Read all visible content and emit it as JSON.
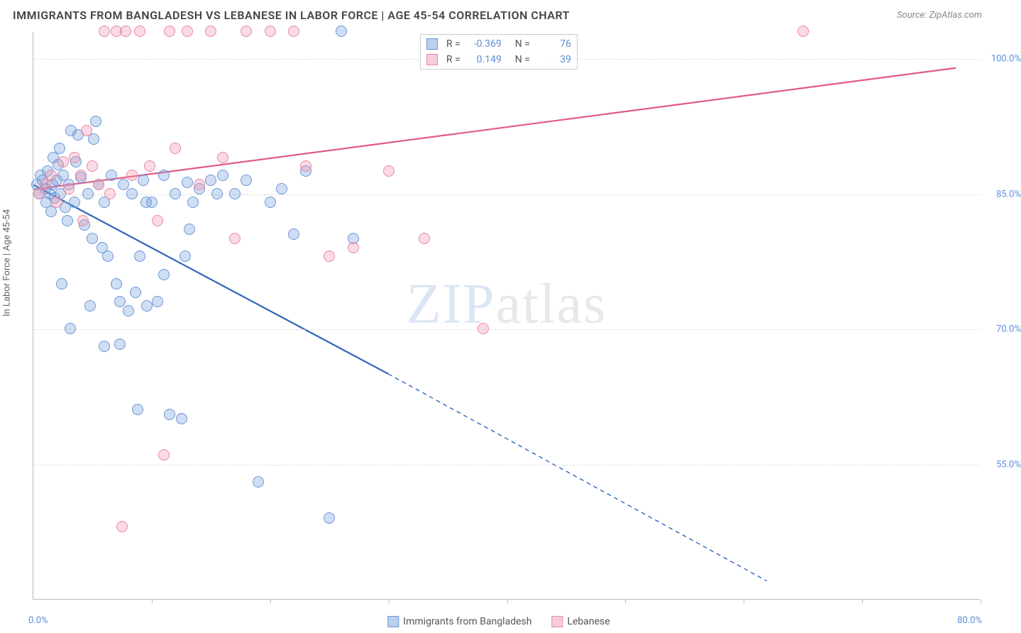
{
  "title": "IMMIGRANTS FROM BANGLADESH VS LEBANESE IN LABOR FORCE | AGE 45-54 CORRELATION CHART",
  "source_label": "Source: ZipAtlas.com",
  "ylabel": "In Labor Force | Age 45-54",
  "watermark_a": "ZIP",
  "watermark_b": "atlas",
  "chart": {
    "type": "scatter",
    "xlim": [
      0,
      80
    ],
    "ylim": [
      40,
      103
    ],
    "y_ticks": [
      55,
      70,
      85,
      100
    ],
    "y_tick_labels": [
      "55.0%",
      "70.0%",
      "85.0%",
      "100.0%"
    ],
    "x_ticks": [
      10,
      20,
      30,
      40,
      50,
      60,
      70,
      80
    ],
    "x_origin_label": "0.0%",
    "x_max_label": "80.0%",
    "background_color": "#ffffff",
    "grid_color": "#dddddd",
    "marker_radius": 8,
    "marker_stroke_width": 1.2,
    "line_width": 2.2,
    "series": [
      {
        "key": "bangladesh",
        "label": "Immigrants from Bangladesh",
        "fill": "rgba(120,160,220,0.35)",
        "stroke": "#6a98d6",
        "swatch_fill": "#b9d0ee",
        "swatch_border": "#6a98d6",
        "R": "-0.369",
        "N": "76",
        "trend": {
          "x1": 0,
          "y1": 86,
          "x2": 30,
          "y2": 65,
          "x2_ext": 62,
          "y2_ext": 42,
          "color": "#2f66b8"
        },
        "points": [
          [
            0.3,
            86
          ],
          [
            0.5,
            85
          ],
          [
            0.6,
            87
          ],
          [
            0.8,
            86.5
          ],
          [
            1,
            85.5
          ],
          [
            1.1,
            84
          ],
          [
            1.2,
            87.5
          ],
          [
            1.4,
            85
          ],
          [
            1.5,
            83
          ],
          [
            1.6,
            86
          ],
          [
            1.8,
            84.5
          ],
          [
            2,
            86.5
          ],
          [
            2.1,
            88.2
          ],
          [
            2.3,
            85
          ],
          [
            2.5,
            87
          ],
          [
            2.7,
            83.5
          ],
          [
            3,
            86
          ],
          [
            3.2,
            92
          ],
          [
            3.5,
            84
          ],
          [
            3.8,
            91.5
          ],
          [
            4,
            86.8
          ],
          [
            4.3,
            81.5
          ],
          [
            4.6,
            85
          ],
          [
            5,
            80
          ],
          [
            5.3,
            93
          ],
          [
            5.5,
            86
          ],
          [
            5.8,
            79
          ],
          [
            6,
            84
          ],
          [
            6.3,
            78
          ],
          [
            6.6,
            87
          ],
          [
            7,
            75
          ],
          [
            7.3,
            73
          ],
          [
            7.6,
            86
          ],
          [
            8,
            72
          ],
          [
            8.3,
            85
          ],
          [
            8.6,
            74
          ],
          [
            9,
            78
          ],
          [
            9.3,
            86.5
          ],
          [
            9.6,
            72.5
          ],
          [
            10,
            84
          ],
          [
            10.5,
            73
          ],
          [
            11,
            87
          ],
          [
            11.5,
            60.5
          ],
          [
            12,
            85
          ],
          [
            12.5,
            60
          ],
          [
            13,
            86.2
          ],
          [
            13.5,
            84
          ],
          [
            14,
            85.5
          ],
          [
            15,
            86.5
          ],
          [
            16,
            87
          ],
          [
            17,
            85
          ],
          [
            18,
            86.5
          ],
          [
            19,
            53
          ],
          [
            20,
            84
          ],
          [
            21,
            85.5
          ],
          [
            22,
            80.5
          ],
          [
            23,
            87.5
          ],
          [
            25,
            49
          ],
          [
            26,
            103
          ],
          [
            27,
            80
          ],
          [
            6,
            68
          ],
          [
            7.3,
            68.3
          ],
          [
            4.8,
            72.5
          ],
          [
            2.2,
            90
          ],
          [
            1.7,
            89
          ],
          [
            3.6,
            88.5
          ],
          [
            2.9,
            82
          ],
          [
            8.8,
            61
          ],
          [
            5.1,
            91
          ],
          [
            11,
            76
          ],
          [
            12.8,
            78
          ],
          [
            9.5,
            84
          ],
          [
            13.2,
            81
          ],
          [
            15.5,
            85
          ],
          [
            3.1,
            70
          ],
          [
            2.4,
            75
          ]
        ]
      },
      {
        "key": "lebanese",
        "label": "Lebanese",
        "fill": "rgba(240,150,175,0.35)",
        "stroke": "#e78aa5",
        "swatch_fill": "#f7cdd9",
        "swatch_border": "#e78aa5",
        "R": "0.149",
        "N": "39",
        "trend": {
          "x1": 0,
          "y1": 85.5,
          "x2": 78,
          "y2": 99,
          "color": "#e05a85"
        },
        "points": [
          [
            0.5,
            85
          ],
          [
            1,
            86
          ],
          [
            1.5,
            87
          ],
          [
            2,
            84
          ],
          [
            2.5,
            88.5
          ],
          [
            3,
            85.5
          ],
          [
            3.5,
            89
          ],
          [
            4,
            87
          ],
          [
            4.5,
            92
          ],
          [
            5,
            88
          ],
          [
            5.5,
            86
          ],
          [
            6,
            103
          ],
          [
            6.5,
            85
          ],
          [
            7,
            103
          ],
          [
            7.8,
            103
          ],
          [
            8.3,
            87
          ],
          [
            9,
            103
          ],
          [
            9.8,
            88
          ],
          [
            10.5,
            82
          ],
          [
            11.5,
            103
          ],
          [
            12,
            90
          ],
          [
            13,
            103
          ],
          [
            14,
            86
          ],
          [
            15,
            103
          ],
          [
            16,
            89
          ],
          [
            17,
            80
          ],
          [
            18,
            103
          ],
          [
            20,
            103
          ],
          [
            22,
            103
          ],
          [
            23,
            88
          ],
          [
            25,
            78
          ],
          [
            27,
            79
          ],
          [
            30,
            87.5
          ],
          [
            33,
            80
          ],
          [
            38,
            70
          ],
          [
            7.5,
            48
          ],
          [
            11,
            56
          ],
          [
            4.2,
            82
          ],
          [
            65,
            103
          ]
        ]
      }
    ]
  },
  "corr_labels": {
    "R": "R =",
    "N": "N ="
  }
}
